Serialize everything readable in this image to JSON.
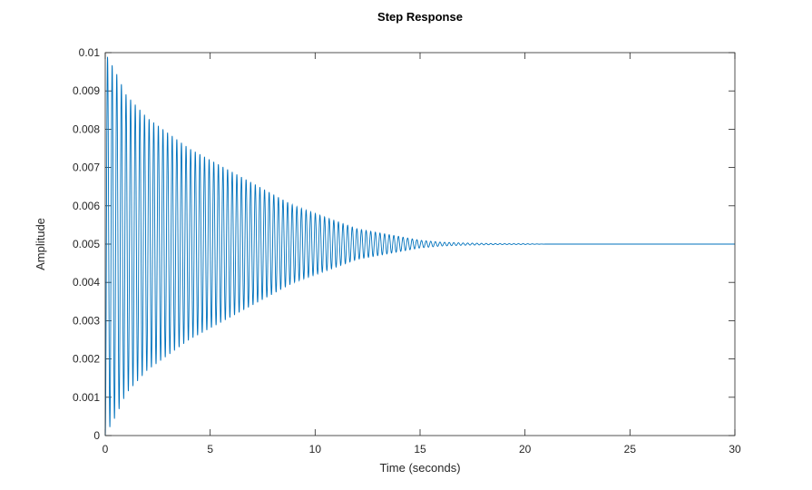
{
  "chart_data": {
    "type": "line",
    "title": "Step Response",
    "xlabel": "Time (seconds)",
    "ylabel": "Amplitude",
    "xlim": [
      0,
      30
    ],
    "ylim": [
      0,
      0.01
    ],
    "x_ticks": [
      0,
      5,
      10,
      15,
      20,
      25,
      30
    ],
    "x_tick_labels": [
      "0",
      "5",
      "10",
      "15",
      "20",
      "25",
      "30"
    ],
    "y_ticks": [
      0,
      0.001,
      0.002,
      0.003,
      0.004,
      0.005,
      0.006,
      0.007,
      0.008,
      0.009,
      0.01
    ],
    "y_tick_labels": [
      "0",
      "0.001",
      "0.002",
      "0.003",
      "0.004",
      "0.005",
      "0.006",
      "0.007",
      "0.008",
      "0.009",
      "0.01"
    ],
    "grid": false,
    "series": [
      {
        "color": "#0072bd",
        "x": [
          0,
          0.5,
          1,
          2,
          3,
          4,
          5,
          6,
          7,
          8,
          9,
          10,
          11,
          12,
          13,
          14,
          15,
          16,
          17,
          18,
          19,
          20,
          21,
          22,
          23,
          24,
          25,
          26,
          27,
          28,
          29,
          30
        ],
        "y_upper_envelope": [
          0.01,
          0.0095,
          0.0089,
          0.0083,
          0.0079,
          0.0075,
          0.0072,
          0.0069,
          0.0066,
          0.0063,
          0.006,
          0.0058,
          0.0056,
          0.0054,
          0.0053,
          0.0052,
          0.0051,
          0.00505,
          0.00503,
          0.00502,
          0.00501,
          0.00501,
          0.005,
          0.005,
          0.005,
          0.005,
          0.005,
          0.005,
          0.005,
          0.005,
          0.005,
          0.005
        ],
        "y_lower_envelope": [
          0.0,
          0.0005,
          0.0011,
          0.0017,
          0.0021,
          0.0025,
          0.0028,
          0.0031,
          0.0034,
          0.0037,
          0.004,
          0.0042,
          0.0044,
          0.0046,
          0.0047,
          0.0048,
          0.0049,
          0.00495,
          0.00497,
          0.00498,
          0.00499,
          0.00499,
          0.005,
          0.005,
          0.005,
          0.005,
          0.005,
          0.005,
          0.005,
          0.005,
          0.005,
          0.005
        ],
        "steady_state": 0.005,
        "oscillation_period_s": 0.22
      }
    ]
  }
}
